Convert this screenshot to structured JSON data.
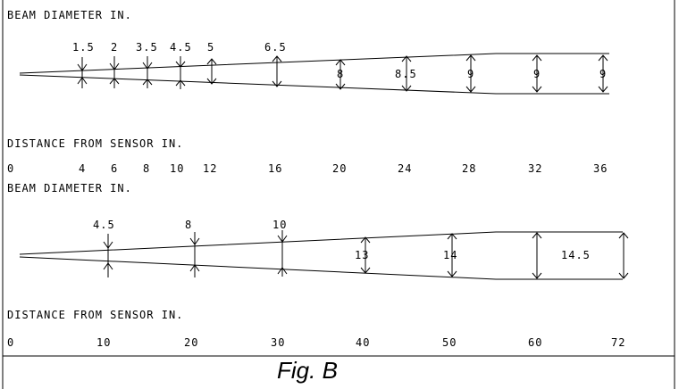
{
  "figure": {
    "caption": "Fig. B",
    "panel_top": {
      "beam_label": "BEAM DIAMETER IN.",
      "axis_label": "DISTANCE FROM SENSOR IN.",
      "distance_ticks": [
        "0",
        "4",
        "6",
        "8",
        "10",
        "12",
        "16",
        "20",
        "24",
        "28",
        "32",
        "36"
      ],
      "diameter_labels": [
        "1.5",
        "2",
        "3.5",
        "4.5",
        "5",
        "6.5",
        "8",
        "8.5",
        "9",
        "9",
        "9"
      ]
    },
    "panel_bottom": {
      "beam_label": "BEAM DIAMETER IN.",
      "axis_label": "DISTANCE FROM SENSOR IN.",
      "distance_ticks": [
        "0",
        "10",
        "20",
        "30",
        "40",
        "50",
        "60",
        "72"
      ],
      "diameter_labels": [
        "4.5",
        "8",
        "10",
        "13",
        "14",
        "14.5"
      ]
    }
  }
}
